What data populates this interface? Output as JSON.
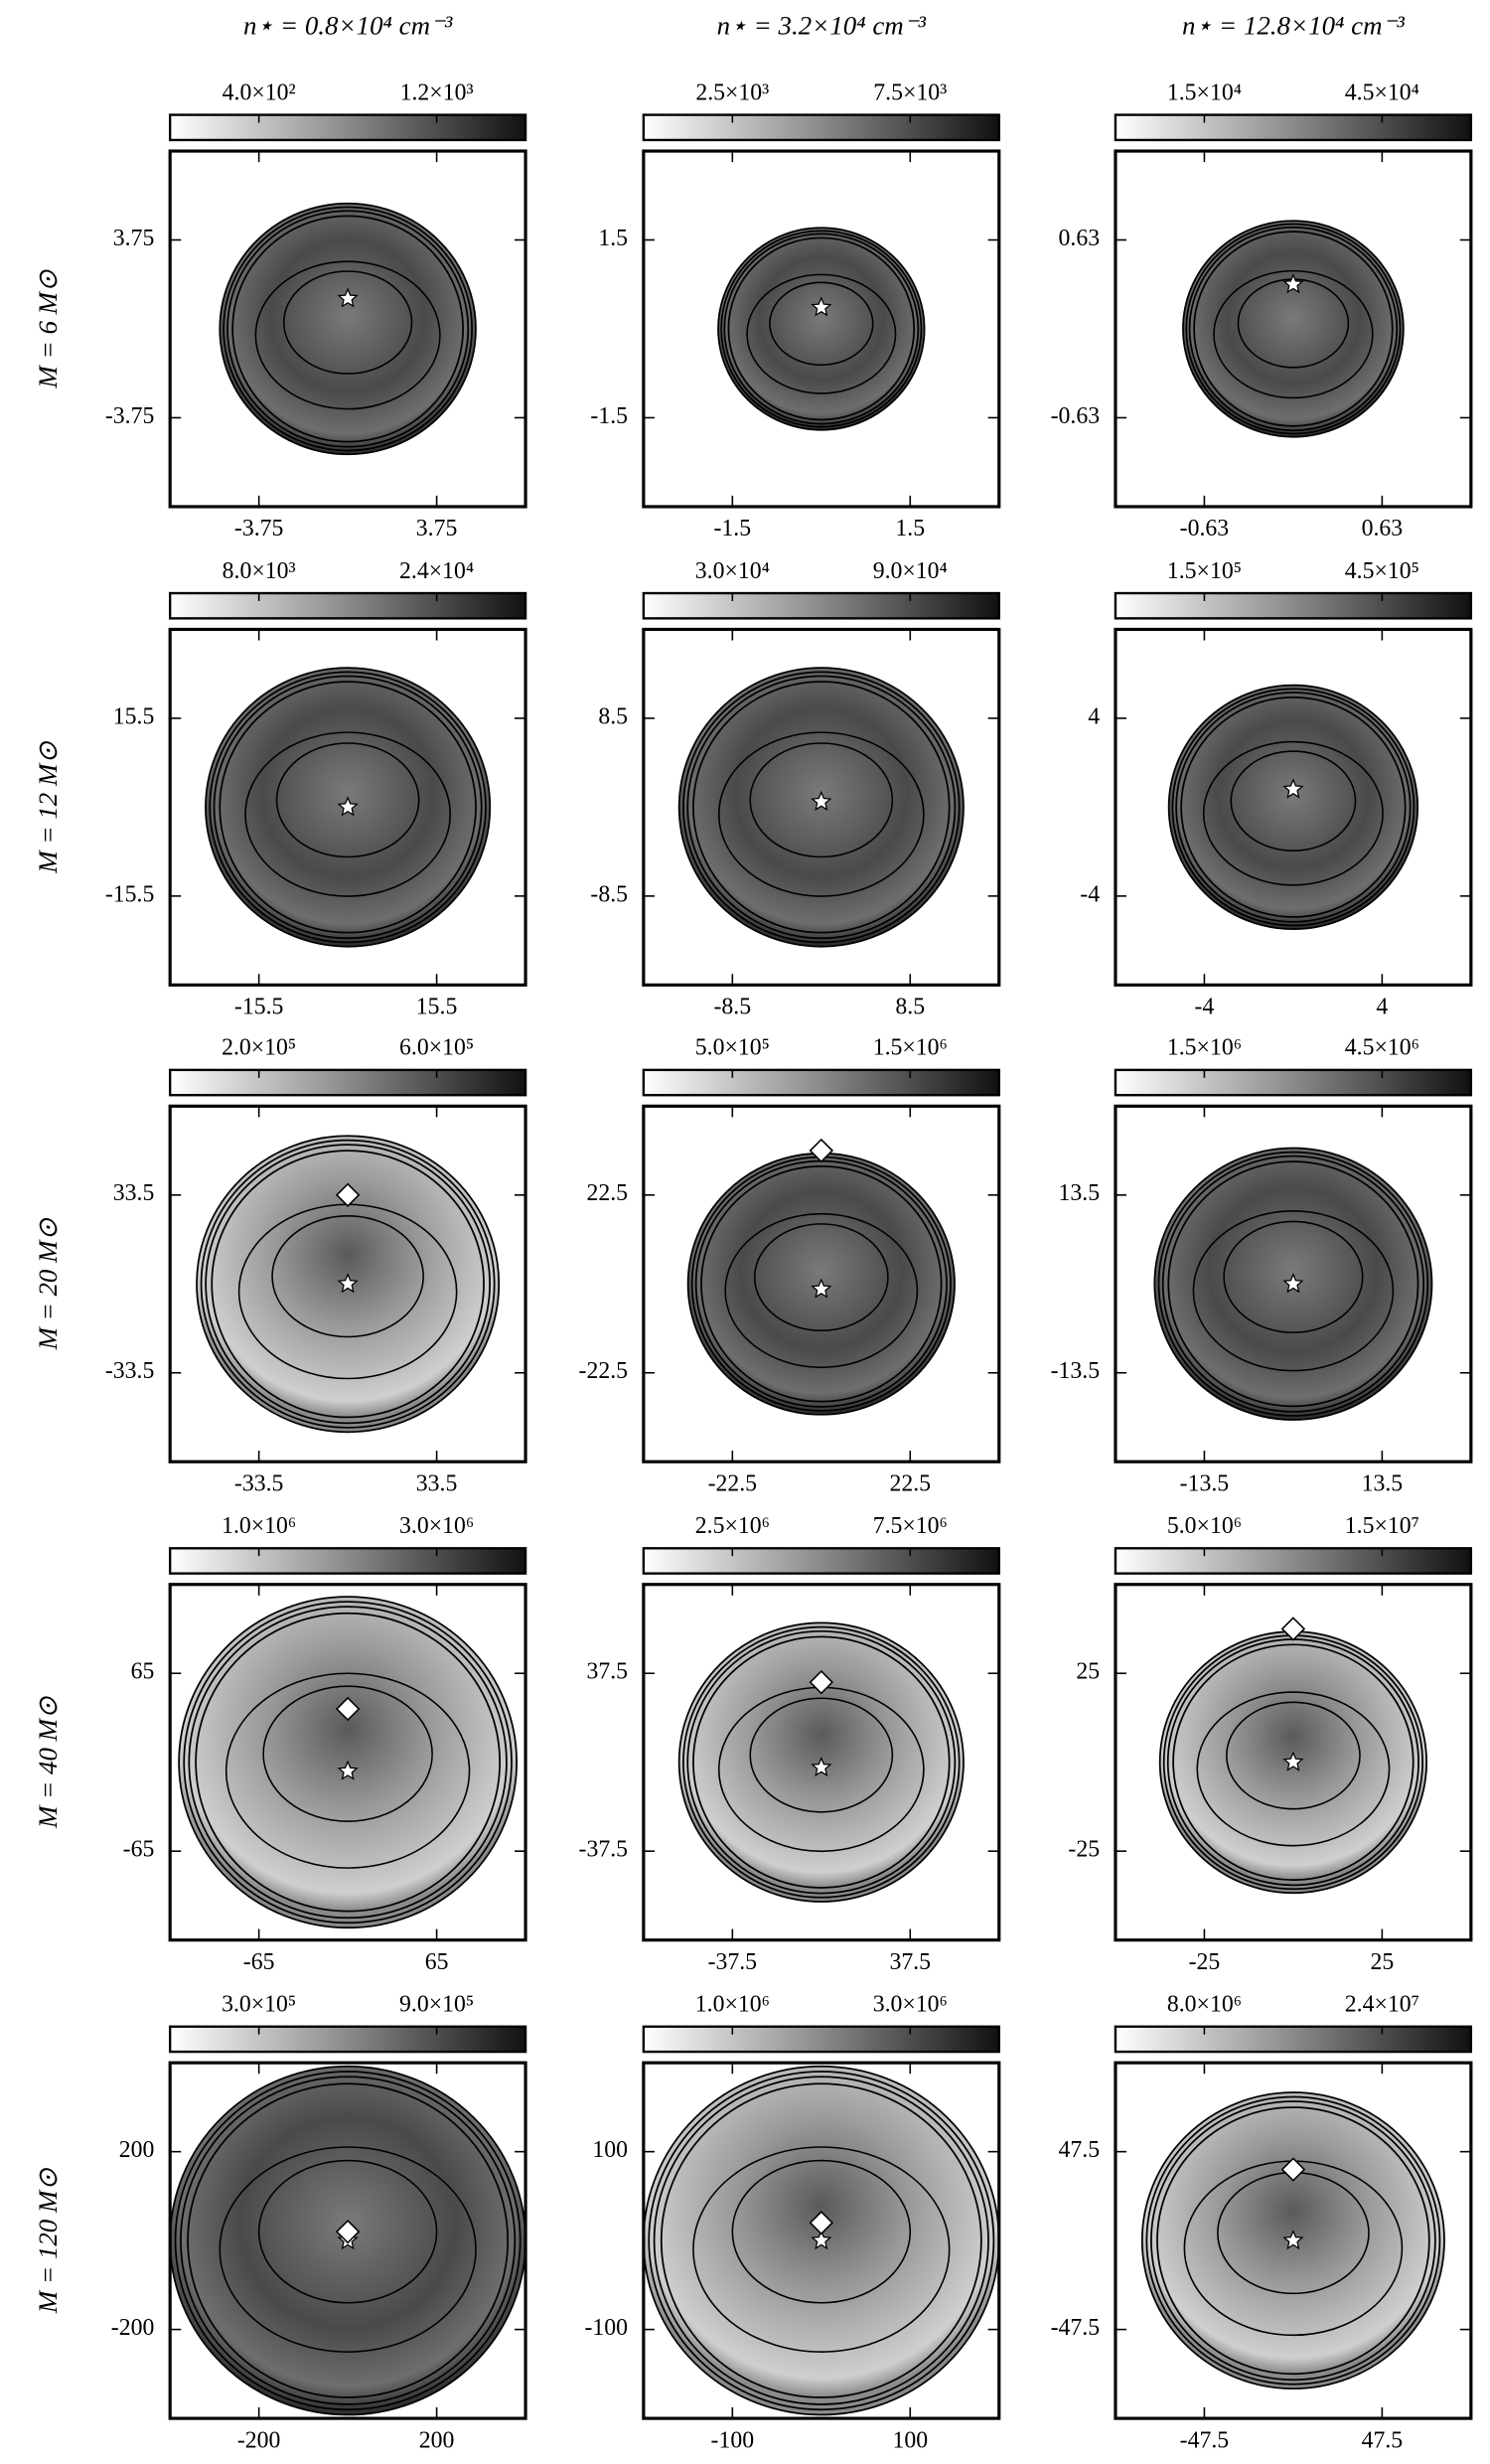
{
  "column_titles": [
    "n⋆ = 0.8×10⁴ cm⁻³",
    "n⋆ = 3.2×10⁴ cm⁻³",
    "n⋆ = 12.8×10⁴ cm⁻³"
  ],
  "row_labels": [
    "M = 6 M⊙",
    "M = 12 M⊙",
    "M = 20 M⊙",
    "M = 40 M⊙",
    "M = 120 M⊙"
  ],
  "chart_data": [
    {
      "type": "image",
      "xlim": [
        -7.5,
        7.5
      ],
      "ylim": [
        -7.5,
        7.5
      ],
      "xticks": [
        -3.75,
        3.75
      ],
      "yticks": [
        -3.75,
        3.75
      ],
      "clim": [
        0,
        1600
      ],
      "cticks": [
        {
          "value": 400,
          "label": "4.0×10²"
        },
        {
          "value": 1200,
          "label": "1.2×10³"
        }
      ]
    },
    {
      "type": "image",
      "xlim": [
        -3,
        3
      ],
      "ylim": [
        -3,
        3
      ],
      "xticks": [
        -1.5,
        1.5
      ],
      "yticks": [
        -1.5,
        1.5
      ],
      "clim": [
        0,
        10000
      ],
      "cticks": [
        {
          "value": 2500,
          "label": "2.5×10³"
        },
        {
          "value": 7500,
          "label": "7.5×10³"
        }
      ]
    },
    {
      "type": "image",
      "xlim": [
        -1.26,
        1.26
      ],
      "ylim": [
        -1.26,
        1.26
      ],
      "xticks": [
        -0.63,
        0.63
      ],
      "yticks": [
        -0.63,
        0.63
      ],
      "clim": [
        0,
        60000
      ],
      "cticks": [
        {
          "value": 15000,
          "label": "1.5×10⁴"
        },
        {
          "value": 45000,
          "label": "4.5×10⁴"
        }
      ]
    },
    {
      "type": "image",
      "xlim": [
        -31,
        31
      ],
      "ylim": [
        -31,
        31
      ],
      "xticks": [
        -15.5,
        15.5
      ],
      "yticks": [
        -15.5,
        15.5
      ],
      "clim": [
        0,
        32000
      ],
      "cticks": [
        {
          "value": 8000,
          "label": "8.0×10³"
        },
        {
          "value": 24000,
          "label": "2.4×10⁴"
        }
      ]
    },
    {
      "type": "image",
      "xlim": [
        -17,
        17
      ],
      "ylim": [
        -17,
        17
      ],
      "xticks": [
        -8.5,
        8.5
      ],
      "yticks": [
        -8.5,
        8.5
      ],
      "clim": [
        0,
        120000
      ],
      "cticks": [
        {
          "value": 30000,
          "label": "3.0×10⁴"
        },
        {
          "value": 90000,
          "label": "9.0×10⁴"
        }
      ]
    },
    {
      "type": "image",
      "xlim": [
        -8,
        8
      ],
      "ylim": [
        -8,
        8
      ],
      "xticks": [
        -4,
        4
      ],
      "yticks": [
        -4,
        4
      ],
      "clim": [
        0,
        600000
      ],
      "cticks": [
        {
          "value": 150000,
          "label": "1.5×10⁵"
        },
        {
          "value": 450000,
          "label": "4.5×10⁵"
        }
      ]
    },
    {
      "type": "image",
      "xlim": [
        -67,
        67
      ],
      "ylim": [
        -67,
        67
      ],
      "xticks": [
        -33.5,
        33.5
      ],
      "yticks": [
        -33.5,
        33.5
      ],
      "clim": [
        0,
        800000
      ],
      "cticks": [
        {
          "value": 200000,
          "label": "2.0×10⁵"
        },
        {
          "value": 600000,
          "label": "6.0×10⁵"
        }
      ]
    },
    {
      "type": "image",
      "xlim": [
        -45,
        45
      ],
      "ylim": [
        -45,
        45
      ],
      "xticks": [
        -22.5,
        22.5
      ],
      "yticks": [
        -22.5,
        22.5
      ],
      "clim": [
        0,
        2000000
      ],
      "cticks": [
        {
          "value": 500000,
          "label": "5.0×10⁵"
        },
        {
          "value": 1500000,
          "label": "1.5×10⁶"
        }
      ]
    },
    {
      "type": "image",
      "xlim": [
        -27,
        27
      ],
      "ylim": [
        -27,
        27
      ],
      "xticks": [
        -13.5,
        13.5
      ],
      "yticks": [
        -13.5,
        13.5
      ],
      "clim": [
        0,
        6000000
      ],
      "cticks": [
        {
          "value": 1500000,
          "label": "1.5×10⁶"
        },
        {
          "value": 4500000,
          "label": "4.5×10⁶"
        }
      ]
    },
    {
      "type": "image",
      "xlim": [
        -130,
        130
      ],
      "ylim": [
        -130,
        130
      ],
      "xticks": [
        -65,
        65
      ],
      "yticks": [
        -65,
        65
      ],
      "clim": [
        0,
        4000000
      ],
      "cticks": [
        {
          "value": 1000000,
          "label": "1.0×10⁶"
        },
        {
          "value": 3000000,
          "label": "3.0×10⁶"
        }
      ]
    },
    {
      "type": "image",
      "xlim": [
        -75,
        75
      ],
      "ylim": [
        -75,
        75
      ],
      "xticks": [
        -37.5,
        37.5
      ],
      "yticks": [
        -37.5,
        37.5
      ],
      "clim": [
        0,
        10000000
      ],
      "cticks": [
        {
          "value": 2500000,
          "label": "2.5×10⁶"
        },
        {
          "value": 7500000,
          "label": "7.5×10⁶"
        }
      ]
    },
    {
      "type": "image",
      "xlim": [
        -50,
        50
      ],
      "ylim": [
        -50,
        50
      ],
      "xticks": [
        -25,
        25
      ],
      "yticks": [
        -25,
        25
      ],
      "clim": [
        0,
        20000000
      ],
      "cticks": [
        {
          "value": 5000000,
          "label": "5.0×10⁶"
        },
        {
          "value": 15000000,
          "label": "1.5×10⁷"
        }
      ]
    },
    {
      "type": "image",
      "xlim": [
        -400,
        400
      ],
      "ylim": [
        -400,
        400
      ],
      "xticks": [
        -200,
        200
      ],
      "yticks": [
        -200,
        200
      ],
      "clim": [
        0,
        1200000
      ],
      "cticks": [
        {
          "value": 300000,
          "label": "3.0×10⁵"
        },
        {
          "value": 900000,
          "label": "9.0×10⁵"
        }
      ]
    },
    {
      "type": "image",
      "xlim": [
        -200,
        200
      ],
      "ylim": [
        -200,
        200
      ],
      "xticks": [
        -100,
        100
      ],
      "yticks": [
        -100,
        100
      ],
      "clim": [
        0,
        4000000
      ],
      "cticks": [
        {
          "value": 1000000,
          "label": "1.0×10⁶"
        },
        {
          "value": 3000000,
          "label": "3.0×10⁶"
        }
      ]
    },
    {
      "type": "image",
      "xlim": [
        -95,
        95
      ],
      "ylim": [
        -95,
        95
      ],
      "xticks": [
        -47.5,
        47.5
      ],
      "yticks": [
        -47.5,
        47.5
      ],
      "clim": [
        0,
        32000000
      ],
      "cticks": [
        {
          "value": 8000000,
          "label": "8.0×10⁶"
        },
        {
          "value": 24000000,
          "label": "2.4×10⁷"
        }
      ]
    }
  ]
}
